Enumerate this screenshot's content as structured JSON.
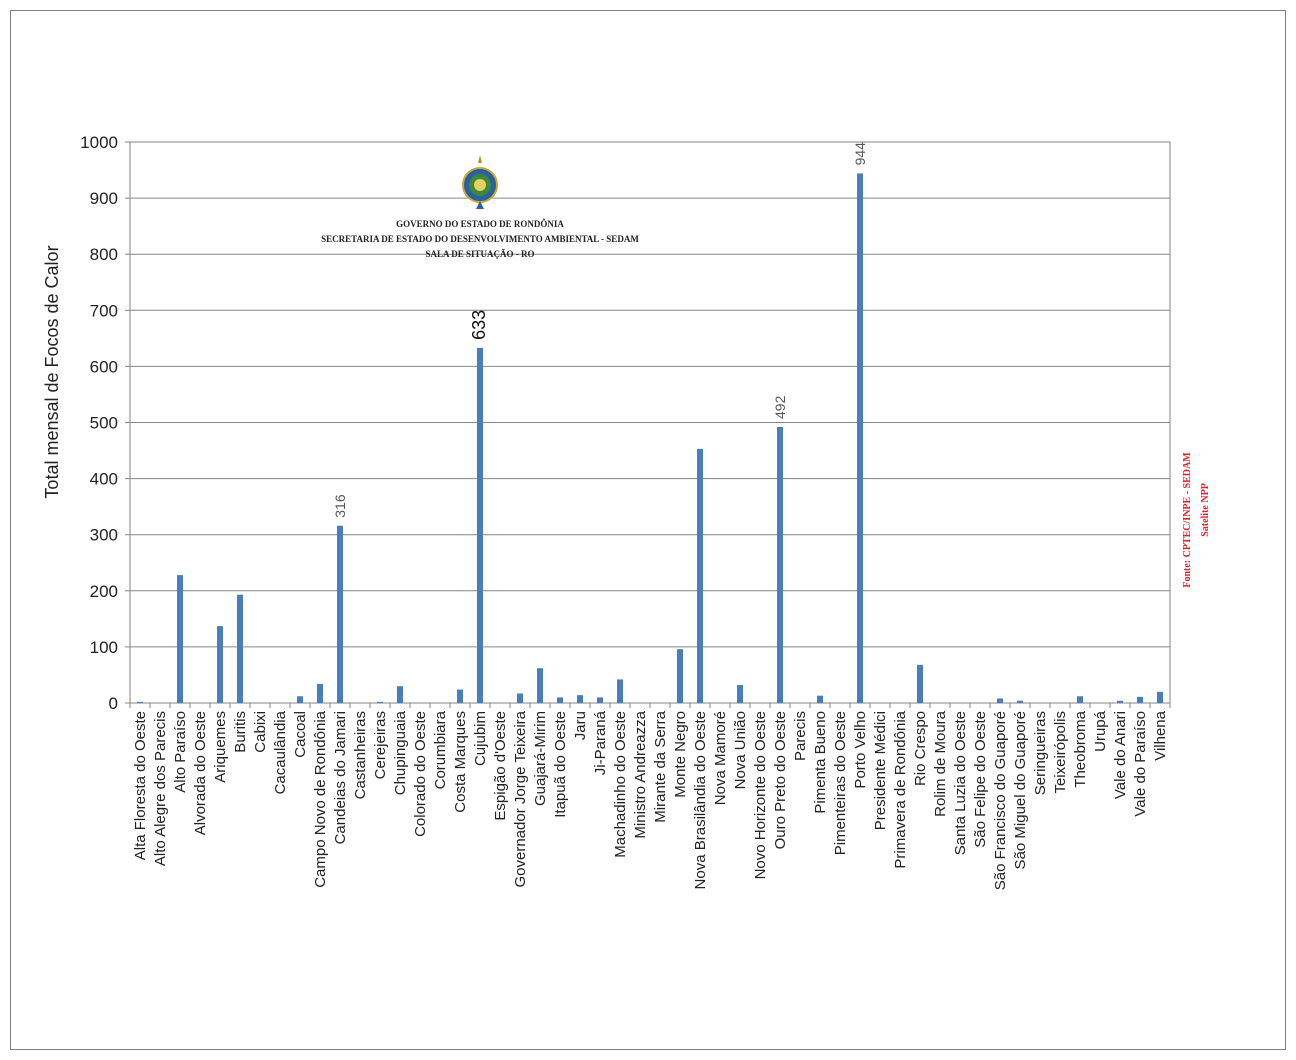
{
  "header": {
    "line1": "GOVERNO DO ESTADO DE RONDÔNIA",
    "line2": "SECRETARIA DE ESTADO DO DESENVOLVIMENTO AMBIENTAL - SEDAM",
    "line3": "SALA DE SITUAÇÃO - RO"
  },
  "source": {
    "line1": "Fonte: CPTEC/INPE - SEDAM",
    "line2": "Satelite NPP",
    "color": "#e0202a"
  },
  "chart_data": {
    "type": "bar",
    "title": "",
    "xlabel": "",
    "ylabel": "Total mensal  de Focos de Calor",
    "ylim": [
      0,
      1000
    ],
    "yticks": [
      0,
      100,
      200,
      300,
      400,
      500,
      600,
      700,
      800,
      900,
      1000
    ],
    "grid": true,
    "bar_color": "#4a7ebb",
    "categories": [
      "Alta Floresta do Oeste",
      "Alto Alegre dos Parecis",
      "Alto Paraíso",
      "Alvorada do Oeste",
      "Ariquemes",
      "Buritis",
      "Cabixi",
      "Cacaulândia",
      "Cacoal",
      "Campo Novo de Rondônia",
      "Candeias do Jamari",
      "Castanheiras",
      "Cerejeiras",
      "Chupinguaia",
      "Colorado do Oeste",
      "Corumbiara",
      "Costa Marques",
      "Cujubim",
      "Espigão d'Oeste",
      "Governador Jorge Teixeira",
      "Guajará-Mirim",
      "Itapuã do Oeste",
      "Jaru",
      "Ji-Paraná",
      "Machadinho do Oeste",
      "Ministro Andreazza",
      "Mirante da Serra",
      "Monte Negro",
      "Nova Brasilândia do Oeste",
      "Nova Mamoré",
      "Nova União",
      "Novo Horizonte do Oeste",
      "Ouro Preto do Oeste",
      "Parecis",
      "Pimenta Bueno",
      "Pimenteiras do Oeste",
      "Porto Velho",
      "Presidente Médici",
      "Primavera de Rondônia",
      "Rio Crespo",
      "Rolim de Moura",
      "Santa Luzia do Oeste",
      "São Felipe do Oeste",
      "São Francisco do Guaporé",
      "São Miguel do Guaporé",
      "Seringueiras",
      "Teixeirópolis",
      "Theobroma",
      "Urupá",
      "Vale do Anari",
      "Vale do Paraíso",
      "Vilhena"
    ],
    "values": [
      2,
      0,
      228,
      0,
      137,
      193,
      0,
      0,
      12,
      34,
      316,
      0,
      2,
      30,
      0,
      0,
      24,
      633,
      0,
      17,
      62,
      10,
      14,
      10,
      42,
      0,
      0,
      96,
      453,
      0,
      32,
      0,
      492,
      0,
      13,
      0,
      944,
      0,
      0,
      68,
      0,
      0,
      0,
      8,
      4,
      0,
      0,
      12,
      0,
      4,
      11,
      20
    ],
    "data_labels": [
      {
        "category": "Candeias do Jamari",
        "text": "316"
      },
      {
        "category": "Cujubim",
        "text": "633"
      },
      {
        "category": "Ouro Preto do Oeste",
        "text": "492"
      },
      {
        "category": "Porto Velho",
        "text": "944"
      }
    ]
  }
}
